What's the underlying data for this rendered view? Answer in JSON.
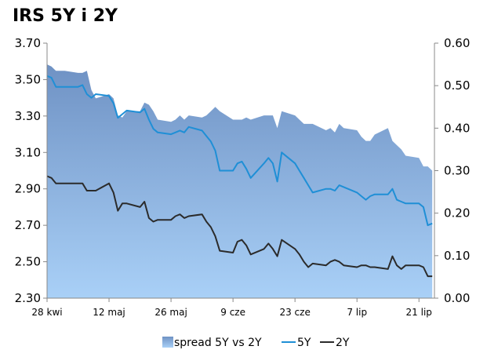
{
  "chart_data": {
    "type": "line",
    "title": "IRS 5Y i 2Y",
    "y_left": {
      "min": 2.3,
      "max": 3.7,
      "ticks": [
        "2.30",
        "2.50",
        "2.70",
        "2.90",
        "3.10",
        "3.30",
        "3.50",
        "3.70"
      ]
    },
    "y_right": {
      "min": 0.0,
      "max": 0.6,
      "ticks": [
        "0.00",
        "0.10",
        "0.20",
        "0.30",
        "0.40",
        "0.50",
        "0.60"
      ]
    },
    "x_ticks": [
      {
        "label": "28 kwi",
        "day": 0
      },
      {
        "label": "12 maj",
        "day": 14
      },
      {
        "label": "26 maj",
        "day": 28
      },
      {
        "label": "9 cze",
        "day": 42
      },
      {
        "label": "23 cze",
        "day": 56
      },
      {
        "label": "7 lip",
        "day": 70
      },
      {
        "label": "21 lip",
        "day": 84
      }
    ],
    "x_range": [
      0,
      87.5
    ],
    "x": [
      0,
      1,
      2,
      3,
      4,
      7,
      8,
      9,
      10,
      11,
      14,
      15,
      16,
      17,
      18,
      21,
      22,
      23,
      24,
      25,
      28,
      29,
      30,
      31,
      32,
      35,
      36,
      37,
      38,
      39,
      42,
      43,
      44,
      45,
      46,
      49,
      50,
      51,
      52,
      53,
      56,
      57,
      58,
      59,
      60,
      63,
      64,
      65,
      66,
      67,
      70,
      71,
      72,
      73,
      74,
      77,
      78,
      79,
      80,
      81,
      84,
      85,
      86,
      87
    ],
    "series": [
      {
        "name": "spread 5Y vs 2Y",
        "axis": "right",
        "kind": "area",
        "color": "#6f9ed8",
        "values": [
          0.55,
          0.545,
          0.535,
          0.535,
          0.535,
          0.53,
          0.53,
          0.535,
          0.49,
          0.47,
          0.48,
          0.47,
          0.43,
          0.425,
          0.44,
          0.44,
          0.46,
          0.455,
          0.44,
          0.42,
          0.415,
          0.42,
          0.43,
          0.42,
          0.43,
          0.425,
          0.43,
          0.44,
          0.45,
          0.44,
          0.42,
          0.42,
          0.42,
          0.425,
          0.42,
          0.43,
          0.43,
          0.43,
          0.4,
          0.44,
          0.43,
          0.42,
          0.41,
          0.41,
          0.41,
          0.395,
          0.4,
          0.39,
          0.41,
          0.4,
          0.395,
          0.38,
          0.37,
          0.37,
          0.385,
          0.4,
          0.37,
          0.36,
          0.35,
          0.335,
          0.33,
          0.31,
          0.31,
          0.3
        ]
      },
      {
        "name": "5Y",
        "axis": "left",
        "kind": "line",
        "color": "#1f8fd6",
        "values": [
          3.52,
          3.51,
          3.46,
          3.46,
          3.46,
          3.46,
          3.47,
          3.42,
          3.4,
          3.42,
          3.41,
          3.37,
          3.29,
          3.31,
          3.33,
          3.32,
          3.34,
          3.28,
          3.23,
          3.21,
          3.2,
          3.21,
          3.22,
          3.21,
          3.24,
          3.22,
          3.19,
          3.16,
          3.11,
          3.0,
          3.0,
          3.04,
          3.05,
          3.01,
          2.96,
          3.04,
          3.07,
          3.04,
          2.94,
          3.1,
          3.04,
          3.0,
          2.96,
          2.92,
          2.88,
          2.9,
          2.9,
          2.89,
          2.92,
          2.91,
          2.88,
          2.86,
          2.84,
          2.86,
          2.87,
          2.87,
          2.9,
          2.84,
          2.83,
          2.82,
          2.82,
          2.8,
          2.7,
          2.71
        ]
      },
      {
        "name": "2Y",
        "axis": "left",
        "kind": "line",
        "color": "#2b2b2b",
        "values": [
          2.97,
          2.96,
          2.93,
          2.93,
          2.93,
          2.93,
          2.93,
          2.89,
          2.89,
          2.89,
          2.93,
          2.88,
          2.78,
          2.82,
          2.82,
          2.8,
          2.83,
          2.74,
          2.72,
          2.73,
          2.73,
          2.75,
          2.76,
          2.74,
          2.75,
          2.76,
          2.72,
          2.69,
          2.64,
          2.56,
          2.55,
          2.61,
          2.62,
          2.59,
          2.54,
          2.57,
          2.6,
          2.57,
          2.53,
          2.62,
          2.57,
          2.54,
          2.5,
          2.47,
          2.49,
          2.48,
          2.5,
          2.51,
          2.5,
          2.48,
          2.47,
          2.48,
          2.48,
          2.47,
          2.47,
          2.46,
          2.53,
          2.48,
          2.46,
          2.48,
          2.48,
          2.47,
          2.42,
          2.42
        ]
      }
    ],
    "legend": [
      "spread 5Y vs 2Y",
      "5Y",
      "2Y"
    ],
    "legend_position": "bottom",
    "grid": false,
    "colors": {
      "area_top": "#6f96c8",
      "area_bottom": "#a9cff6",
      "line_5y": "#1f8fd6",
      "line_2y": "#2b2b2b",
      "axis": "#888888"
    }
  }
}
